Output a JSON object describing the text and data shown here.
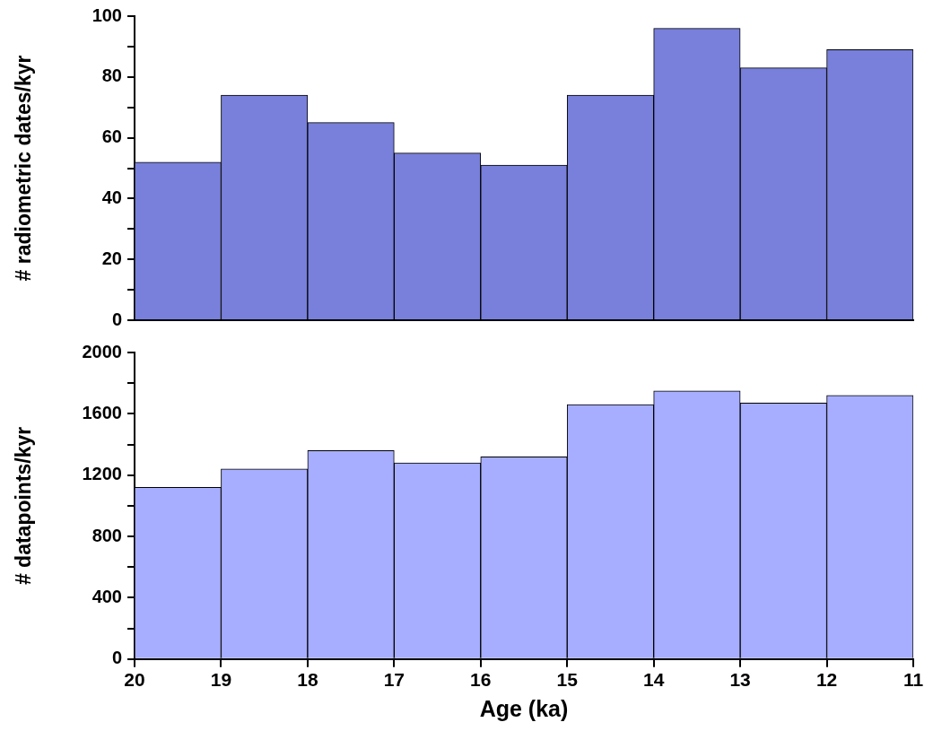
{
  "chart_data": [
    {
      "type": "histogram",
      "ylabel": "# radiometric dates/kyr",
      "bins": [
        20,
        19,
        18,
        17,
        16,
        15,
        14,
        13,
        12,
        11
      ],
      "values": [
        52,
        74,
        65,
        55,
        51,
        74,
        96,
        83,
        89
      ],
      "color": "#7880db",
      "xlim": [
        20,
        11
      ],
      "ylim": [
        0,
        100
      ],
      "yticks": [
        0,
        {
          "value": 10,
          "label": null
        },
        20,
        {
          "value": 30,
          "label": null
        },
        40,
        {
          "value": 50,
          "label": null
        },
        60,
        {
          "value": 70,
          "label": null
        },
        80,
        {
          "value": 90,
          "label": null
        },
        100
      ],
      "tick_labels": "y",
      "grid": false,
      "legend": false
    },
    {
      "type": "histogram",
      "xlabel": "Age (ka)",
      "ylabel": "# datapoints/kyr",
      "bins": [
        20,
        19,
        18,
        17,
        16,
        15,
        14,
        13,
        12,
        11
      ],
      "values": [
        1120,
        1240,
        1360,
        1280,
        1320,
        1660,
        1750,
        1670,
        1720
      ],
      "color": "#a7aeff",
      "xlim": [
        20,
        11
      ],
      "xticks": [
        20,
        19,
        18,
        17,
        16,
        15,
        14,
        13,
        12,
        11
      ],
      "ylim": [
        0,
        2000
      ],
      "yticks": [
        0,
        {
          "value": 200,
          "label": null
        },
        400,
        {
          "value": 600,
          "label": null
        },
        800,
        {
          "value": 1000,
          "label": null
        },
        1200,
        {
          "value": 1400,
          "label": null
        },
        1600,
        {
          "value": 1800,
          "label": null
        },
        2000
      ],
      "grid": false,
      "legend": false
    }
  ]
}
